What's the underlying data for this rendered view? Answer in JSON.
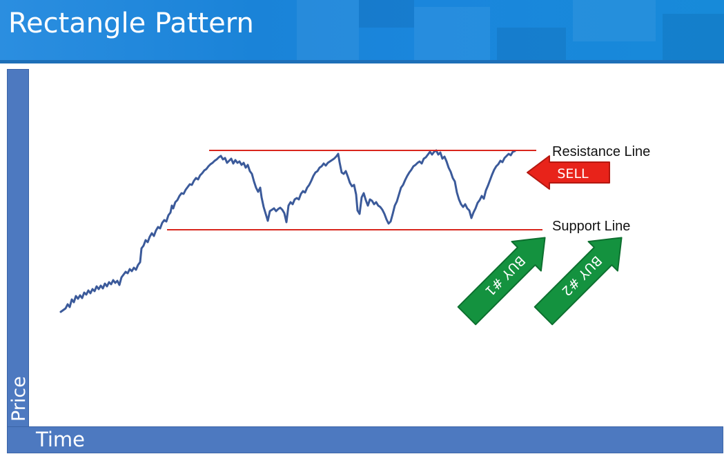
{
  "title": "Rectangle Pattern",
  "axes": {
    "y_label": "Price",
    "x_label": "Time"
  },
  "lines": {
    "resistance_label": "Resistance Line",
    "support_label": "Support Line",
    "color": "#d9261c"
  },
  "signals": {
    "sell_label": "SELL",
    "sell_color": "#e8231a",
    "buy1_label": "BUY #1",
    "buy2_label": "BUY #2",
    "buy_color": "#14923f"
  },
  "colors": {
    "banner": "#1a86dc",
    "axis_bar": "#4d79c0",
    "price_line": "#3b5a9a"
  }
}
